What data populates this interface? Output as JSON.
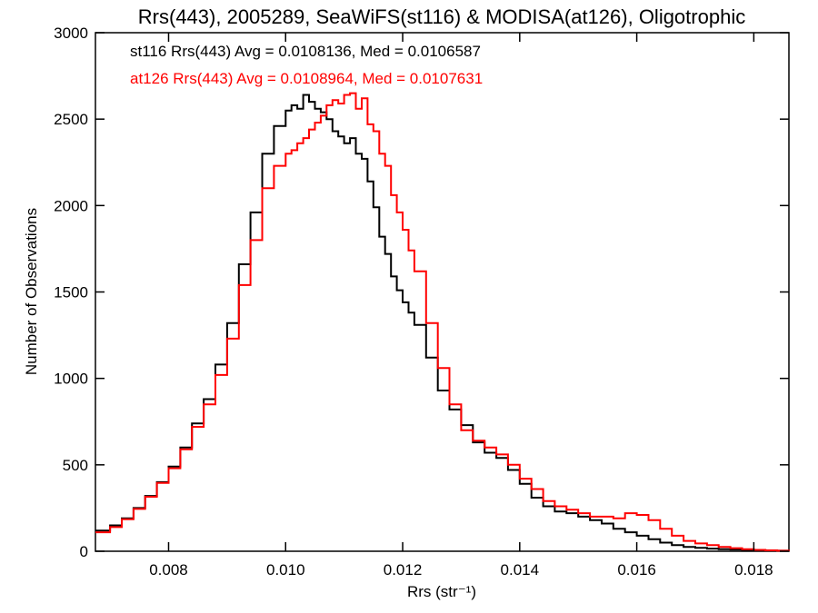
{
  "chart_data": {
    "type": "step",
    "title": "Rrs(443), 2005289, SeaWiFS(st116) & MODISA(at126), Oligotrophic",
    "xlabel": "Rrs (str⁻¹)",
    "ylabel": "Number of Observations",
    "xlim": [
      0.00675,
      0.0186
    ],
    "ylim": [
      0,
      3000
    ],
    "xticks": [
      0.008,
      0.01,
      0.012,
      0.014,
      0.016,
      0.018
    ],
    "xtick_labels": [
      "0.008",
      "0.010",
      "0.012",
      "0.014",
      "0.016",
      "0.018"
    ],
    "yticks": [
      0,
      500,
      1000,
      1500,
      2000,
      2500,
      3000
    ],
    "ytick_labels": [
      "0",
      "500",
      "1000",
      "1500",
      "2000",
      "2500",
      "3000"
    ],
    "grid": false,
    "annotations": [
      {
        "text": "st116 Rrs(443) Avg = 0.0108136, Med = 0.0106587",
        "color": "#000000"
      },
      {
        "text": "at126 Rrs(443) Avg = 0.0108964, Med = 0.0107631",
        "color": "#ff0000"
      }
    ],
    "series": [
      {
        "color": "#000000",
        "x": [
          0.00675,
          0.007,
          0.0072,
          0.0074,
          0.0076,
          0.0078,
          0.008,
          0.0082,
          0.0084,
          0.0086,
          0.0088,
          0.009,
          0.0092,
          0.0094,
          0.0096,
          0.0098,
          0.01,
          0.0101,
          0.0102,
          0.0103,
          0.0104,
          0.0105,
          0.0106,
          0.0107,
          0.0108,
          0.0109,
          0.011,
          0.0111,
          0.0112,
          0.0113,
          0.0114,
          0.0115,
          0.0116,
          0.0117,
          0.0118,
          0.0119,
          0.012,
          0.0121,
          0.0122,
          0.0124,
          0.0126,
          0.0128,
          0.013,
          0.0132,
          0.0134,
          0.0136,
          0.0138,
          0.014,
          0.0142,
          0.0144,
          0.0146,
          0.0148,
          0.015,
          0.0152,
          0.0154,
          0.0156,
          0.0158,
          0.016,
          0.0162,
          0.0164,
          0.0166,
          0.0168,
          0.017,
          0.0172,
          0.0174,
          0.0176,
          0.0178,
          0.018,
          0.0182,
          0.0184,
          0.0186
        ],
        "y": [
          120,
          150,
          190,
          250,
          320,
          400,
          490,
          600,
          740,
          880,
          1080,
          1320,
          1660,
          1960,
          2300,
          2460,
          2550,
          2580,
          2560,
          2640,
          2600,
          2560,
          2540,
          2500,
          2430,
          2400,
          2360,
          2390,
          2300,
          2270,
          2140,
          1990,
          1820,
          1720,
          1590,
          1510,
          1440,
          1380,
          1310,
          1120,
          930,
          820,
          730,
          630,
          570,
          540,
          470,
          390,
          310,
          260,
          230,
          220,
          200,
          180,
          160,
          130,
          110,
          90,
          70,
          50,
          35,
          25,
          20,
          15,
          12,
          10,
          8,
          6,
          4,
          3,
          2
        ]
      },
      {
        "color": "#ff0000",
        "x": [
          0.00675,
          0.007,
          0.0072,
          0.0074,
          0.0076,
          0.0078,
          0.008,
          0.0082,
          0.0084,
          0.0086,
          0.0088,
          0.009,
          0.0092,
          0.0094,
          0.0096,
          0.0098,
          0.01,
          0.0101,
          0.0102,
          0.0103,
          0.0104,
          0.0105,
          0.0106,
          0.0107,
          0.0108,
          0.0109,
          0.011,
          0.0111,
          0.0112,
          0.0113,
          0.0114,
          0.0115,
          0.0116,
          0.0117,
          0.0118,
          0.0119,
          0.012,
          0.0121,
          0.0122,
          0.0124,
          0.0126,
          0.0128,
          0.013,
          0.0132,
          0.0134,
          0.0136,
          0.0138,
          0.014,
          0.0142,
          0.0144,
          0.0146,
          0.0148,
          0.015,
          0.0152,
          0.0154,
          0.0156,
          0.0158,
          0.016,
          0.0162,
          0.0164,
          0.0166,
          0.0168,
          0.017,
          0.0172,
          0.0174,
          0.0176,
          0.0178,
          0.018,
          0.0182,
          0.0184,
          0.0186
        ],
        "y": [
          110,
          140,
          185,
          245,
          315,
          395,
          480,
          590,
          720,
          850,
          1020,
          1230,
          1540,
          1800,
          2100,
          2230,
          2300,
          2320,
          2360,
          2390,
          2440,
          2480,
          2520,
          2580,
          2610,
          2590,
          2640,
          2650,
          2560,
          2620,
          2470,
          2430,
          2300,
          2230,
          2060,
          1960,
          1860,
          1740,
          1620,
          1320,
          1060,
          850,
          700,
          640,
          600,
          560,
          500,
          420,
          360,
          290,
          260,
          240,
          220,
          200,
          200,
          190,
          220,
          210,
          180,
          130,
          90,
          60,
          45,
          35,
          25,
          18,
          12,
          8,
          5,
          3,
          2
        ]
      }
    ]
  }
}
